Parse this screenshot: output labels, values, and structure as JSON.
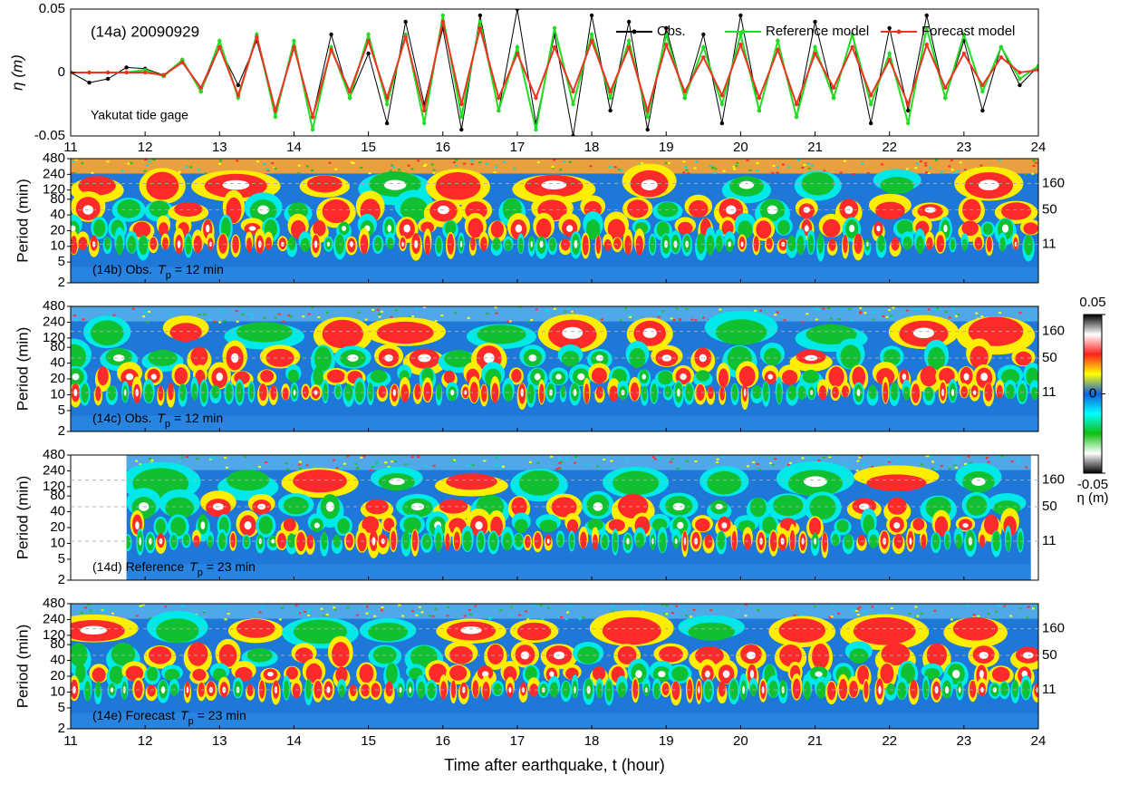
{
  "chart_data": [
    {
      "type": "line",
      "title": "(14a) 20090929",
      "annotation": "Yakutat tide gage",
      "ylabel": "η (m)",
      "xlim": [
        11,
        24
      ],
      "xticks": [
        11,
        12,
        13,
        14,
        15,
        16,
        17,
        18,
        19,
        20,
        21,
        22,
        23,
        24
      ],
      "ylim": [
        -0.05,
        0.05
      ],
      "yticks": [
        -0.05,
        0,
        0.05
      ],
      "legend": "upper right",
      "x": [
        11,
        11.25,
        11.5,
        11.75,
        12,
        12.25,
        12.5,
        12.75,
        13,
        13.25,
        13.5,
        13.75,
        14,
        14.25,
        14.5,
        14.75,
        15,
        15.25,
        15.5,
        15.75,
        16,
        16.25,
        16.5,
        16.75,
        17,
        17.25,
        17.5,
        17.75,
        18,
        18.25,
        18.5,
        18.75,
        19,
        19.25,
        19.5,
        19.75,
        20,
        20.25,
        20.5,
        20.75,
        21,
        21.25,
        21.5,
        21.75,
        22,
        22.25,
        22.5,
        22.75,
        23,
        23.25,
        23.5,
        23.75,
        24
      ],
      "series": [
        {
          "name": "Obs.",
          "color": "#000000",
          "values": [
            0,
            -0.008,
            -0.005,
            0.004,
            0.003,
            -0.002,
            0.01,
            -0.015,
            0.02,
            -0.01,
            0.025,
            -0.03,
            0.02,
            -0.035,
            0.03,
            -0.02,
            0.015,
            -0.04,
            0.04,
            -0.025,
            0.035,
            -0.045,
            0.045,
            -0.03,
            0.05,
            -0.04,
            0.03,
            -0.05,
            0.045,
            -0.03,
            0.04,
            -0.045,
            0.035,
            -0.02,
            0.03,
            -0.04,
            0.045,
            -0.03,
            0.025,
            -0.035,
            0.04,
            -0.02,
            0.03,
            -0.04,
            0.035,
            -0.03,
            0.045,
            -0.02,
            0.025,
            -0.03,
            0.02,
            -0.01,
            0.005
          ]
        },
        {
          "name": "Reference model",
          "color": "#22dd22",
          "values": [
            0,
            0,
            0,
            0,
            0.002,
            -0.003,
            0.01,
            -0.015,
            0.025,
            -0.02,
            0.03,
            -0.035,
            0.025,
            -0.045,
            0.02,
            -0.02,
            0.03,
            -0.025,
            0.03,
            -0.04,
            0.045,
            -0.035,
            0.04,
            -0.03,
            0.02,
            -0.045,
            0.035,
            -0.025,
            0.03,
            -0.02,
            0.025,
            -0.035,
            0.03,
            -0.02,
            0.02,
            -0.025,
            0.03,
            -0.03,
            0.025,
            -0.035,
            0.02,
            -0.02,
            0.03,
            -0.025,
            0.015,
            -0.04,
            0.035,
            -0.02,
            0.03,
            -0.015,
            0.02,
            -0.005,
            0.005
          ]
        },
        {
          "name": "Forecast model",
          "color": "#ee3322",
          "values": [
            0,
            0,
            0,
            0,
            0,
            -0.002,
            0.008,
            -0.012,
            0.02,
            -0.018,
            0.028,
            -0.03,
            0.02,
            -0.035,
            0.018,
            -0.015,
            0.025,
            -0.02,
            0.028,
            -0.03,
            0.04,
            -0.025,
            0.035,
            -0.02,
            0.015,
            -0.02,
            0.02,
            -0.015,
            0.025,
            -0.015,
            0.02,
            -0.03,
            0.022,
            -0.015,
            0.012,
            -0.018,
            0.022,
            -0.02,
            0.018,
            -0.025,
            0.015,
            -0.012,
            0.02,
            -0.018,
            0.01,
            -0.025,
            0.022,
            -0.012,
            0.015,
            -0.01,
            0.012,
            0,
            0.002
          ]
        }
      ]
    },
    {
      "type": "heatmap",
      "label": "(14b) Obs.",
      "tp_symbol": "T",
      "tp_sub": "p",
      "tp_text": "=  12 min",
      "ylabel": "Period (min)",
      "ylog": true,
      "ylim": [
        2,
        480
      ],
      "yticks": [
        2,
        5,
        10,
        20,
        40,
        80,
        120,
        240,
        480
      ],
      "right_ticks": [
        11,
        50,
        160
      ]
    },
    {
      "type": "heatmap",
      "label": "(14c) Obs.",
      "tp_symbol": "T",
      "tp_sub": "p",
      "tp_text": "=  12 min",
      "ylabel": "Period (min)",
      "ylog": true,
      "ylim": [
        2,
        480
      ],
      "yticks": [
        2,
        5,
        10,
        20,
        40,
        80,
        120,
        240,
        480
      ],
      "right_ticks": [
        11,
        50,
        160
      ]
    },
    {
      "type": "heatmap",
      "label": "(14d) Reference",
      "tp_symbol": "T",
      "tp_sub": "p",
      "tp_text": "=  23 min",
      "ylabel": "Period (min)",
      "ylog": true,
      "ylim": [
        2,
        480
      ],
      "yticks": [
        2,
        5,
        10,
        20,
        40,
        80,
        120,
        240,
        480
      ],
      "right_ticks": [
        11,
        50,
        160
      ],
      "data_xlim": [
        11.75,
        23.9
      ]
    },
    {
      "type": "heatmap",
      "label": "(14e) Forecast",
      "tp_symbol": "T",
      "tp_sub": "p",
      "tp_text": "=  23 min",
      "ylabel": "Period (min)",
      "ylog": true,
      "ylim": [
        2,
        480
      ],
      "yticks": [
        2,
        5,
        10,
        20,
        40,
        80,
        120,
        240,
        480
      ],
      "right_ticks": [
        11,
        50,
        160
      ],
      "xlim": [
        11,
        24
      ],
      "xticks": [
        11,
        12,
        13,
        14,
        15,
        16,
        17,
        18,
        19,
        20,
        21,
        22,
        23,
        24
      ],
      "xlabel": "Time after earthquake,  t (hour)"
    }
  ],
  "colorbar": {
    "label": "η (m)",
    "clim": [
      -0.05,
      0.05
    ],
    "ticks": [
      -0.05,
      0,
      0.05
    ],
    "colors": [
      "#000000",
      "#ffffff",
      "#10c010",
      "#00ffff",
      "#1060e0",
      "#ffff00",
      "#ff2020",
      "#ffffff",
      "#000000"
    ]
  }
}
